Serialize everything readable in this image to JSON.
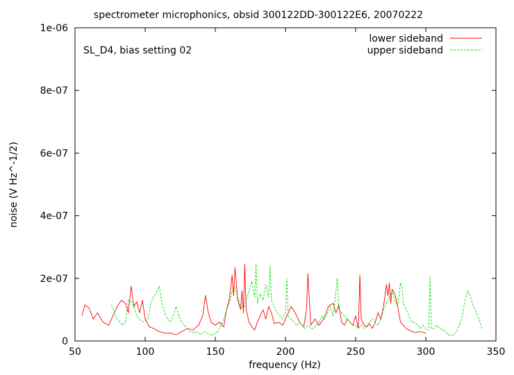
{
  "chart_data": {
    "type": "line",
    "title": "spectrometer microphonics, obsid 300122DD-300122E6, 20070222",
    "annotation": "SL_D4, bias setting 02",
    "xlabel": "frequency (Hz)",
    "ylabel": "noise (V Hz^-1/2)",
    "xlim": [
      50,
      350
    ],
    "ylim": [
      0,
      1e-06
    ],
    "x_ticks": [
      50,
      100,
      150,
      200,
      250,
      300,
      350
    ],
    "x_tick_labels": [
      "50",
      "100",
      "150",
      "200",
      "250",
      "300",
      "350"
    ],
    "y_ticks": [
      0,
      2e-07,
      4e-07,
      6e-07,
      8e-07,
      1e-06
    ],
    "y_tick_labels": [
      "0",
      "2e-07",
      "4e-07",
      "6e-07",
      "8e-07",
      "1e-06"
    ],
    "grid": false,
    "legend_position": "top-right",
    "series": [
      {
        "name": "lower sideband",
        "color": "#ff0000",
        "dash": "solid",
        "x": [
          55,
          57,
          60,
          63,
          66,
          70,
          74,
          77,
          80,
          83,
          86,
          88,
          90,
          92,
          94,
          96,
          98,
          100,
          103,
          106,
          110,
          114,
          118,
          122,
          126,
          130,
          134,
          138,
          141,
          143,
          145,
          147,
          150,
          153,
          156,
          158,
          160,
          162,
          163,
          164,
          166,
          168,
          169,
          170,
          171,
          172,
          174,
          176,
          178,
          180,
          182,
          184,
          186,
          188,
          190,
          192,
          195,
          198,
          201,
          204,
          207,
          210,
          213,
          215,
          216,
          218,
          221,
          224,
          227,
          229,
          230,
          232,
          234,
          236,
          238,
          240,
          242,
          244,
          246,
          248,
          250,
          252,
          253,
          254,
          256,
          258,
          260,
          262,
          264,
          266,
          268,
          270,
          272,
          273,
          274,
          275,
          276,
          278,
          280,
          282,
          284,
          286,
          288,
          290,
          293,
          296,
          300
        ],
        "y": [
          8e-08,
          1.15e-07,
          1.05e-07,
          7e-08,
          9e-08,
          6e-08,
          5e-08,
          8e-08,
          1.1e-07,
          1.3e-07,
          1.2e-07,
          9e-08,
          1.75e-07,
          1.1e-07,
          1.25e-07,
          9e-08,
          1.3e-07,
          7e-08,
          4.5e-08,
          4e-08,
          3e-08,
          2.5e-08,
          2.5e-08,
          2e-08,
          3e-08,
          4e-08,
          3.5e-08,
          5e-08,
          8e-08,
          1.45e-07,
          9e-08,
          6e-08,
          5e-08,
          6e-08,
          4.5e-08,
          1e-07,
          1.35e-07,
          2.1e-07,
          1.45e-07,
          2.35e-07,
          1.3e-07,
          1e-07,
          1.6e-07,
          9e-08,
          2.45e-07,
          1e-07,
          6e-08,
          4.5e-08,
          3.5e-08,
          6e-08,
          8e-08,
          1e-07,
          7e-08,
          1.1e-07,
          9e-08,
          5.5e-08,
          6e-08,
          5e-08,
          8e-08,
          1.1e-07,
          9e-08,
          6e-08,
          4.5e-08,
          1e-07,
          2.15e-07,
          5e-08,
          7e-08,
          5e-08,
          7e-08,
          9e-08,
          1.05e-07,
          1.15e-07,
          1.2e-07,
          9e-08,
          1.15e-07,
          6e-08,
          5e-08,
          7e-08,
          6e-08,
          5e-08,
          8e-08,
          4e-08,
          2.1e-07,
          7e-08,
          5e-08,
          4.5e-08,
          5.5e-08,
          4e-08,
          6e-08,
          9e-08,
          7e-08,
          1.15e-07,
          1.8e-07,
          1.45e-07,
          1.85e-07,
          1.2e-07,
          1.65e-07,
          1.5e-07,
          1.1e-07,
          6e-08,
          5e-08,
          4e-08,
          3.5e-08,
          3e-08,
          2.8e-08,
          3e-08,
          2.5e-08
        ]
      },
      {
        "name": "upper sideband",
        "color": "#00dd00",
        "dash": "dashed",
        "x": [
          76,
          78,
          80,
          82,
          84,
          86,
          88,
          90,
          92,
          94,
          96,
          98,
          100,
          102,
          104,
          106,
          108,
          110,
          112,
          114,
          116,
          118,
          120,
          122,
          124,
          126,
          128,
          130,
          132,
          134,
          136,
          138,
          140,
          142,
          144,
          146,
          148,
          150,
          152,
          154,
          156,
          158,
          160,
          162,
          164,
          166,
          168,
          170,
          172,
          174,
          176,
          178,
          179,
          180,
          182,
          184,
          186,
          188,
          189,
          190,
          192,
          194,
          196,
          198,
          200,
          201,
          202,
          204,
          206,
          208,
          210,
          212,
          214,
          216,
          218,
          220,
          222,
          224,
          226,
          228,
          230,
          232,
          234,
          236,
          237,
          238,
          240,
          242,
          244,
          246,
          248,
          250,
          252,
          254,
          256,
          258,
          260,
          262,
          264,
          266,
          268,
          270,
          272,
          274,
          276,
          278,
          280,
          281,
          282,
          283,
          284,
          286,
          288,
          290,
          292,
          294,
          296,
          298,
          300,
          302,
          303,
          304,
          306,
          308,
          310,
          312,
          314,
          316,
          318,
          320,
          322,
          324,
          326,
          328,
          330,
          332,
          334,
          336,
          338,
          340
        ],
        "y": [
          1.15e-07,
          9e-08,
          7e-08,
          6e-08,
          5e-08,
          6e-08,
          1.3e-07,
          1.25e-07,
          1.1e-07,
          8e-08,
          7e-08,
          6e-08,
          6.5e-08,
          7e-08,
          1.2e-07,
          1.4e-07,
          1.55e-07,
          1.75e-07,
          1.2e-07,
          9e-08,
          7e-08,
          6e-08,
          8e-08,
          1.1e-07,
          8e-08,
          6e-08,
          5e-08,
          4e-08,
          3e-08,
          2.8e-08,
          3e-08,
          2.5e-08,
          2e-08,
          3e-08,
          2.5e-08,
          2e-08,
          1.8e-08,
          2.5e-08,
          3e-08,
          5e-08,
          7e-08,
          1e-07,
          1.2e-07,
          1.6e-07,
          1.7e-07,
          1.4e-07,
          1.1e-07,
          1e-07,
          1.3e-07,
          1.6e-07,
          1.9e-07,
          1.4e-07,
          2.45e-07,
          1.2e-07,
          1.5e-07,
          1.3e-07,
          1.8e-07,
          1.4e-07,
          2.4e-07,
          1.3e-07,
          1.1e-07,
          9e-08,
          8e-08,
          7e-08,
          9e-08,
          2e-07,
          8e-08,
          7e-08,
          6e-08,
          5e-08,
          6e-08,
          5e-08,
          4e-08,
          5e-08,
          4e-08,
          4e-08,
          5e-08,
          6e-08,
          8e-08,
          7e-08,
          9e-08,
          1.1e-07,
          8e-08,
          1.6e-07,
          2e-07,
          1e-07,
          9e-08,
          8e-08,
          7e-08,
          6e-08,
          5e-08,
          5e-08,
          4e-08,
          5e-08,
          4e-08,
          5e-08,
          6e-08,
          7e-08,
          6e-08,
          5e-08,
          7e-08,
          1e-07,
          1.2e-07,
          1.4e-07,
          1.6e-07,
          1.3e-07,
          1.1e-07,
          1.5e-07,
          1.85e-07,
          1.7e-07,
          1.2e-07,
          1e-07,
          8e-08,
          6e-08,
          6e-08,
          5e-08,
          4e-08,
          5e-08,
          4e-08,
          3.5e-08,
          2.05e-07,
          4e-08,
          4e-08,
          5e-08,
          4e-08,
          3.5e-08,
          3e-08,
          2e-08,
          1.8e-08,
          2e-08,
          3e-08,
          5e-08,
          8e-08,
          1.3e-07,
          1.6e-07,
          1.4e-07,
          1.1e-07,
          9e-08,
          7e-08,
          4e-08
        ]
      }
    ]
  }
}
